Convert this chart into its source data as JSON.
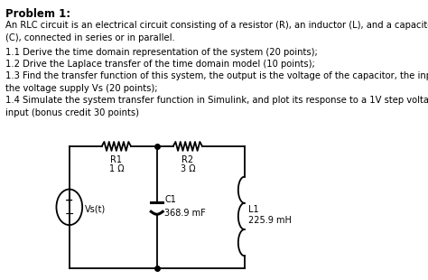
{
  "title": "Problem 1:",
  "para1": "An RLC circuit is an electrical circuit consisting of a resistor (R), an inductor (L), and a capacitor\n(C), connected in series or in parallel.",
  "item1": "1.1 Derive the time domain representation of the system (20 points);",
  "item2": "1.2 Drive the Laplace transfer of the time domain model (10 points);",
  "item3": "1.3 Find the transfer function of this system, the output is the voltage of the capacitor, the input is\nthe voltage supply Vs (20 points);",
  "item4": "1.4 Simulate the system transfer function in Simulink, and plot its response to a 1V step voltage\ninput (bonus credit 30 points)",
  "R1_label": "R1",
  "R1_val": "1 Ω",
  "R2_label": "R2",
  "R2_val": "3 Ω",
  "C1_label": "C1",
  "C1_val": "368.9 mF",
  "L1_label": "L1",
  "L1_val": "225.9 mH",
  "Vs_label": "Vs(t)",
  "bg_color": "#ffffff",
  "text_color": "#000000"
}
